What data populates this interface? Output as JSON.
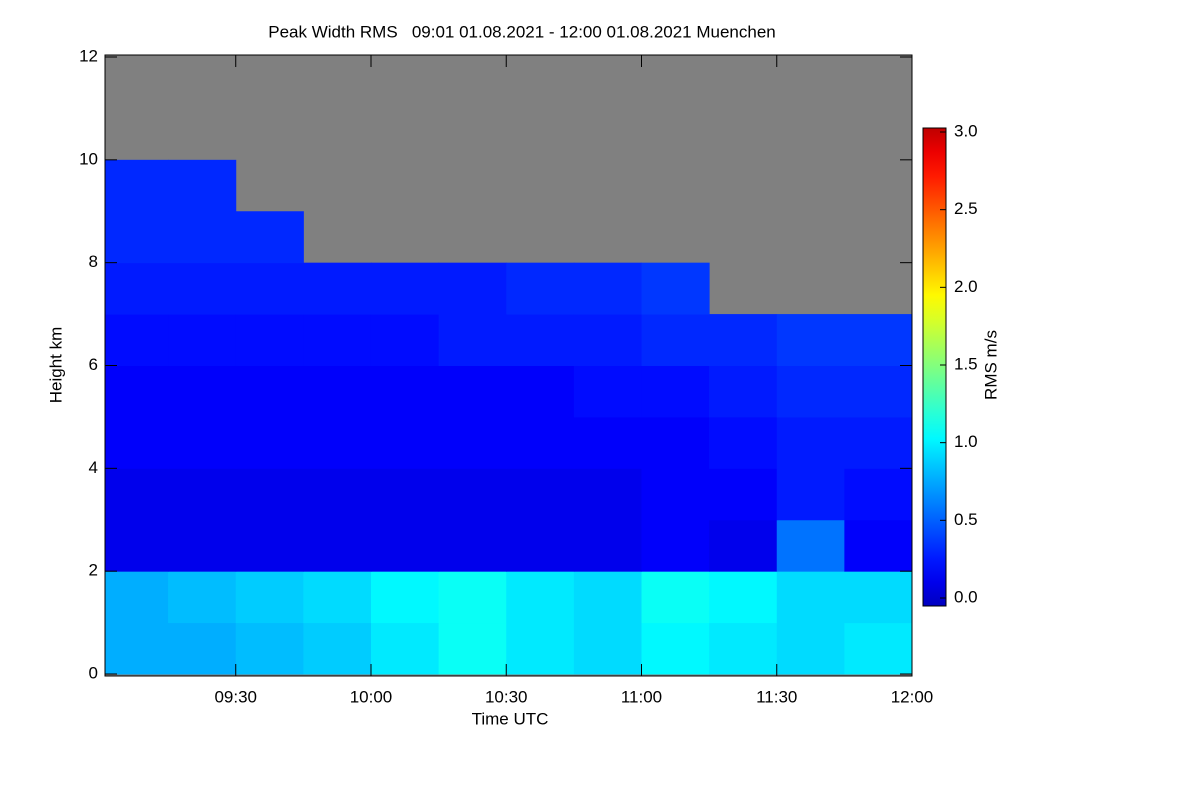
{
  "chart_data": {
    "type": "heatmap",
    "title": "Peak Width RMS   09:01 01.08.2021 - 12:00 01.08.2021 Muenchen",
    "x_label": "Time UTC",
    "y_label": "Height km",
    "colorbar_label": "RMS m/s",
    "xlim": [
      9.0167,
      12.0
    ],
    "xticks": [
      {
        "value": 9.5,
        "label": "09:30"
      },
      {
        "value": 10.0,
        "label": "10:00"
      },
      {
        "value": 10.5,
        "label": "10:30"
      },
      {
        "value": 11.0,
        "label": "11:00"
      },
      {
        "value": 11.5,
        "label": "11:30"
      },
      {
        "value": 12.0,
        "label": "12:00"
      }
    ],
    "ylim": [
      0,
      12
    ],
    "yticks": [
      0,
      2,
      4,
      6,
      8,
      10,
      12
    ],
    "clim": [
      0,
      3
    ],
    "cticks": [
      {
        "value": 0,
        "label": "0.0"
      },
      0.5,
      {
        "value": 1,
        "label": "1.0"
      },
      1.5,
      {
        "value": 2,
        "label": "2.0"
      },
      2.5,
      {
        "value": 3,
        "label": "3.0"
      }
    ],
    "colormap": "jet",
    "missing_color": "#808080",
    "x": [
      9.125,
      9.375,
      9.625,
      9.875,
      10.125,
      10.375,
      10.625,
      10.875,
      11.125,
      11.375,
      11.625,
      11.875
    ],
    "y": [
      0.5,
      1.5,
      2.5,
      3.5,
      4.5,
      5.5,
      6.5,
      7.5,
      8.5,
      9.5,
      10.5,
      11.5
    ],
    "z": [
      [
        0.8,
        0.8,
        0.85,
        0.9,
        1.0,
        1.1,
        1.0,
        0.95,
        1.05,
        1.0,
        0.95,
        1.0
      ],
      [
        0.8,
        0.85,
        0.9,
        0.95,
        1.05,
        1.1,
        1.0,
        0.95,
        1.1,
        1.05,
        0.95,
        0.95
      ],
      [
        0.15,
        0.15,
        0.15,
        0.15,
        0.15,
        0.15,
        0.15,
        0.15,
        0.2,
        0.15,
        0.6,
        0.2
      ],
      [
        0.15,
        0.15,
        0.15,
        0.15,
        0.15,
        0.15,
        0.15,
        0.15,
        0.2,
        0.2,
        0.3,
        0.25
      ],
      [
        0.2,
        0.2,
        0.2,
        0.2,
        0.2,
        0.2,
        0.2,
        0.2,
        0.2,
        0.25,
        0.3,
        0.3
      ],
      [
        0.2,
        0.2,
        0.2,
        0.2,
        0.2,
        0.2,
        0.2,
        0.25,
        0.25,
        0.3,
        0.35,
        0.35
      ],
      [
        0.25,
        0.25,
        0.25,
        0.25,
        0.25,
        0.3,
        0.3,
        0.3,
        0.35,
        0.35,
        0.4,
        0.4
      ],
      [
        0.3,
        0.3,
        0.3,
        0.3,
        0.3,
        0.3,
        0.35,
        0.35,
        0.4,
        null,
        null,
        null
      ],
      [
        0.35,
        0.35,
        0.35,
        null,
        null,
        null,
        null,
        null,
        null,
        null,
        null,
        null
      ],
      [
        0.35,
        0.35,
        null,
        null,
        null,
        null,
        null,
        null,
        null,
        null,
        null,
        null
      ],
      [
        null,
        null,
        null,
        null,
        null,
        null,
        null,
        null,
        null,
        null,
        null,
        null
      ],
      [
        null,
        null,
        null,
        null,
        null,
        null,
        null,
        null,
        null,
        null,
        null,
        null
      ]
    ]
  }
}
